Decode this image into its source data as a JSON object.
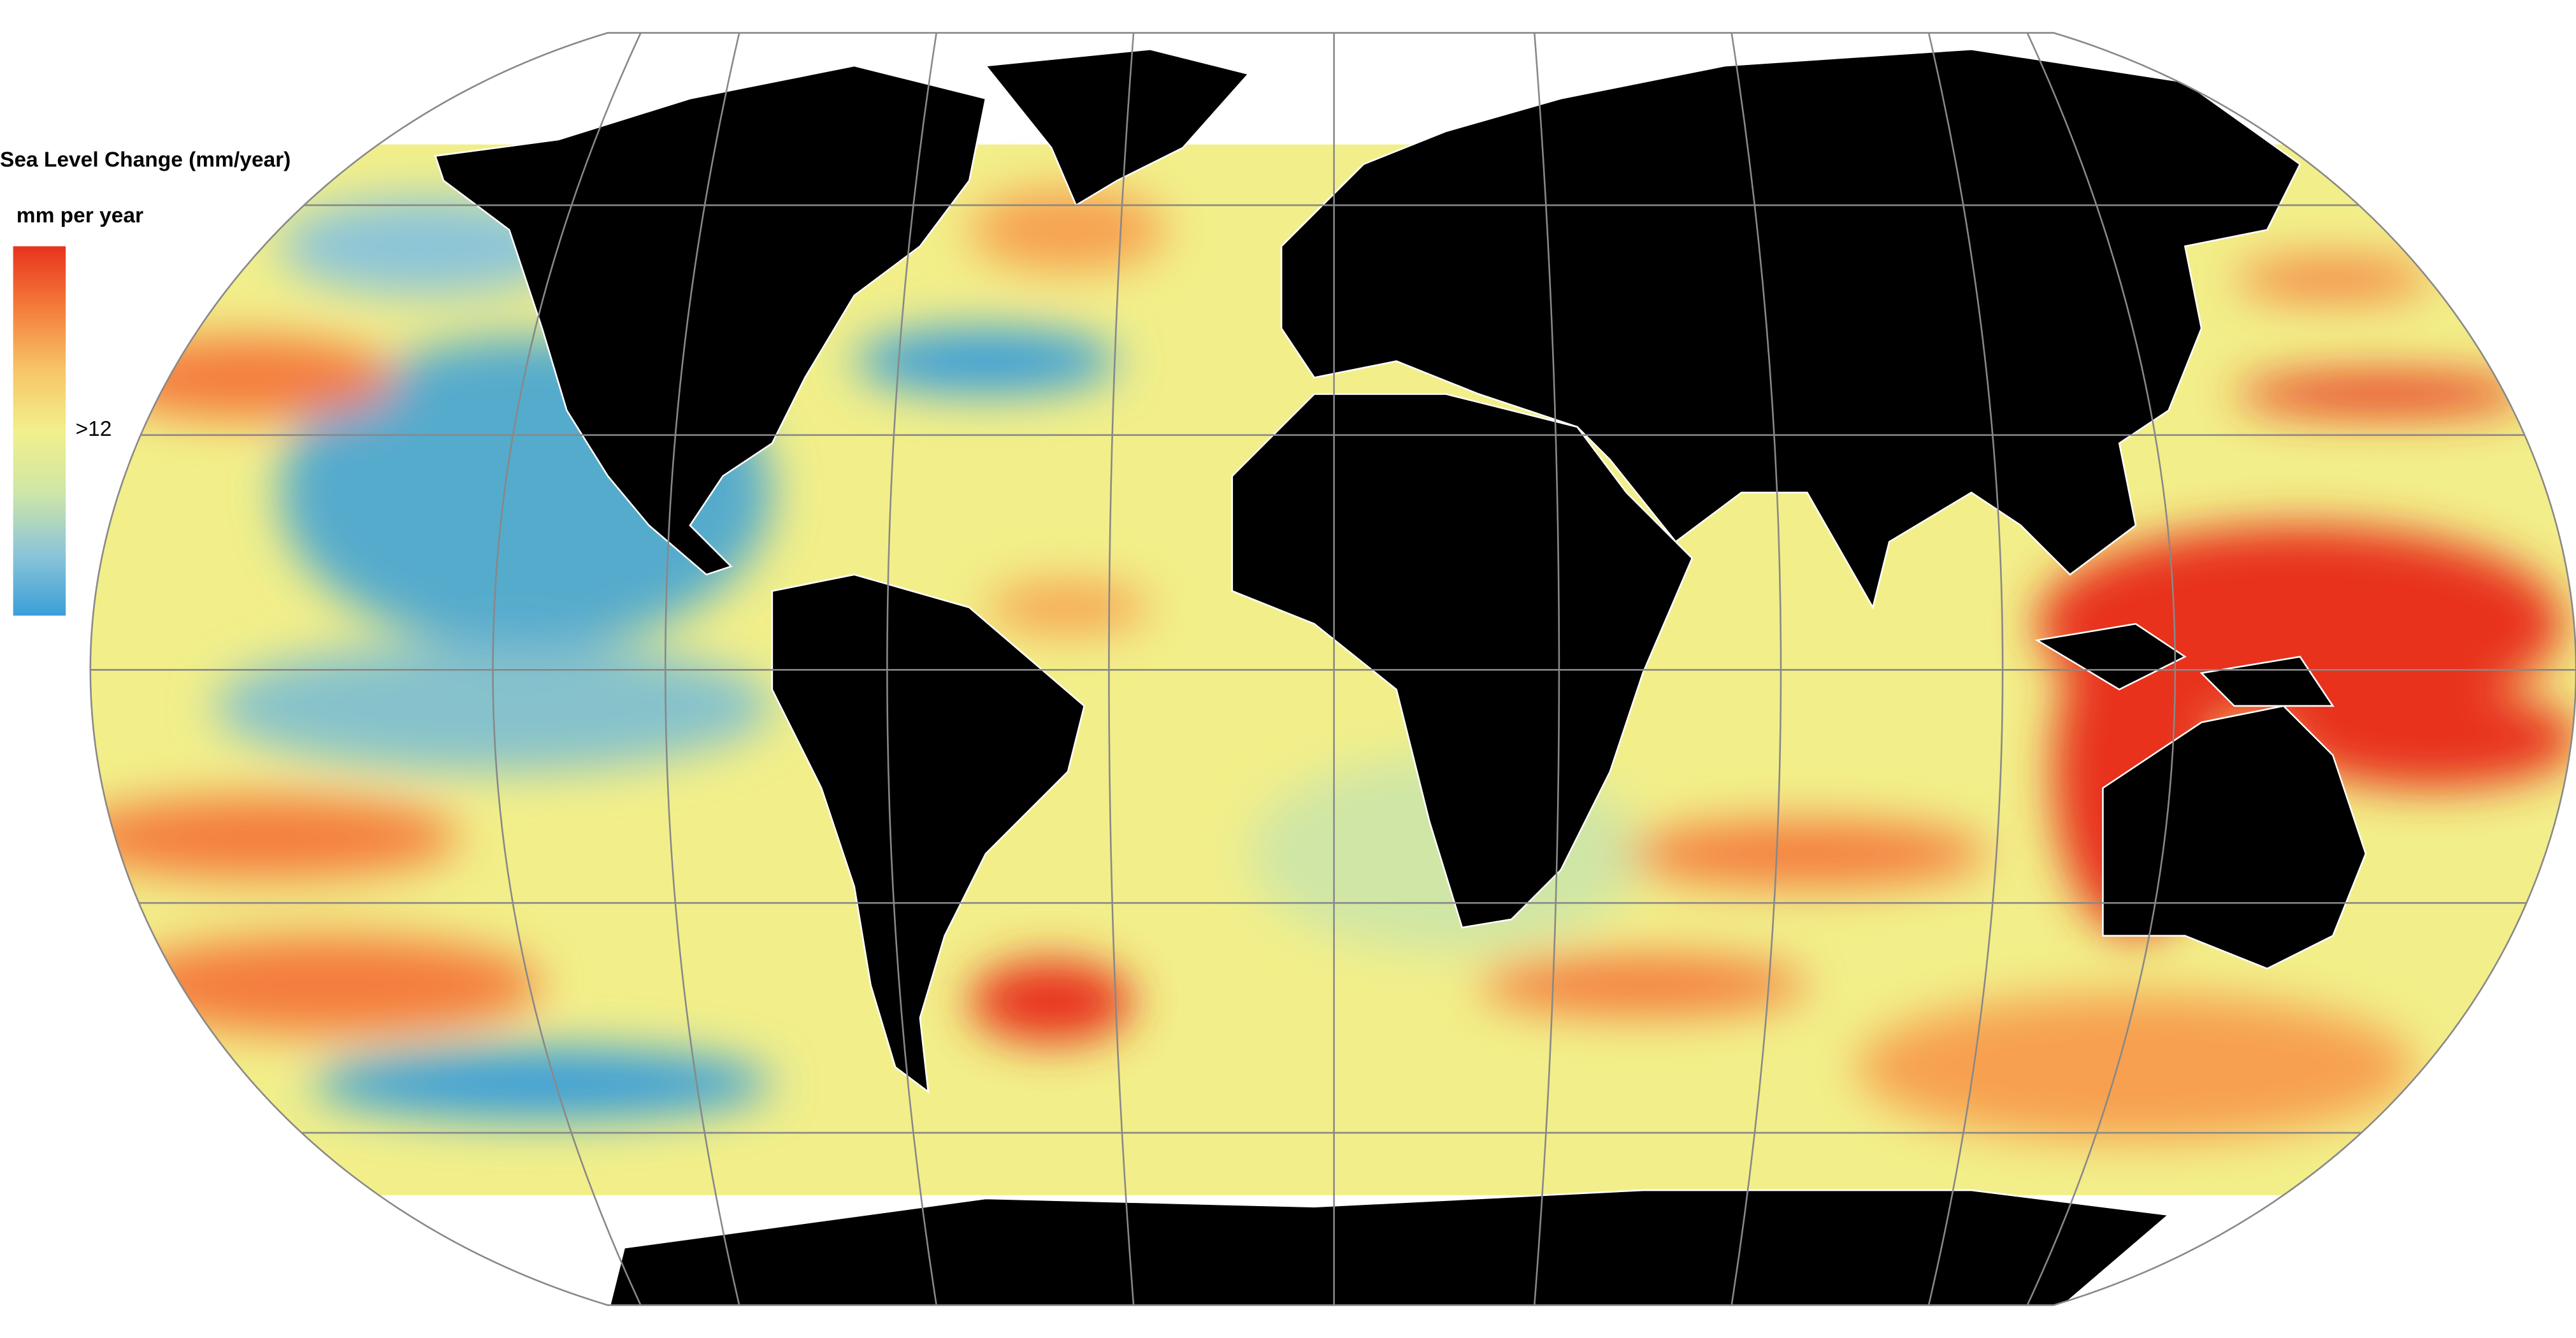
{
  "legend": {
    "title": "Sea Level Change (mm/year)",
    "subtitle": "mm per year",
    "tick": ">12",
    "colors": [
      "#e8331d",
      "#f47c3c",
      "#f7c466",
      "#f2f08c",
      "#cfe6a6",
      "#8cc5d8",
      "#3a9fd8"
    ]
  }
}
